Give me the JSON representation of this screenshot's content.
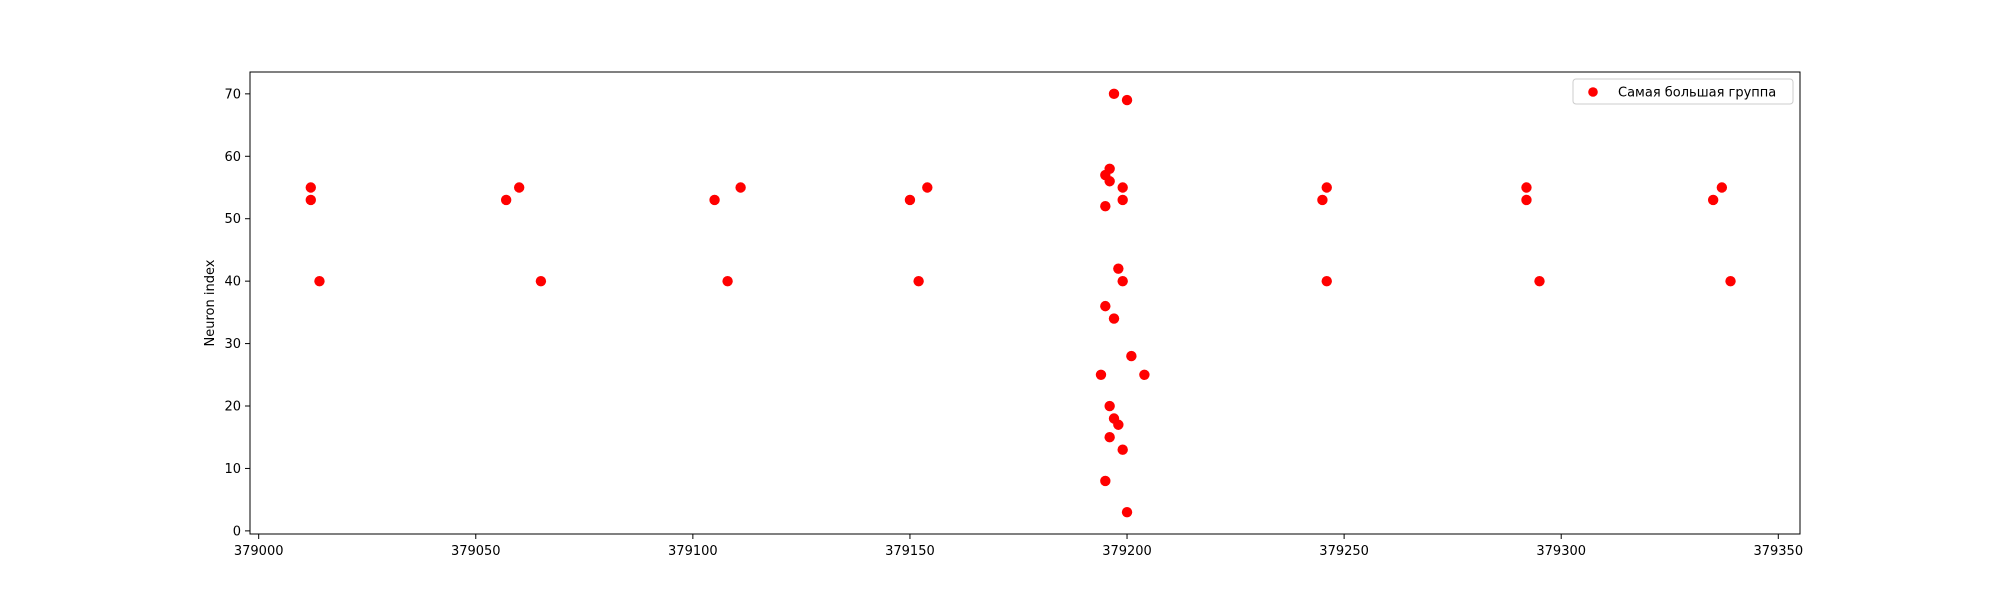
{
  "chart_data": {
    "type": "scatter",
    "title": "",
    "xlabel": "",
    "ylabel": "Neuron index",
    "xlim": [
      378998,
      379355
    ],
    "ylim": [
      -0.5,
      73.5
    ],
    "xticks": [
      379000,
      379050,
      379100,
      379150,
      379200,
      379250,
      379300,
      379350
    ],
    "yticks": [
      0,
      10,
      20,
      30,
      40,
      50,
      60,
      70
    ],
    "grid": false,
    "legend_position": "top-right",
    "series": [
      {
        "name": "Самая большая группа",
        "color": "#ff0000",
        "points": [
          {
            "x": 379012,
            "y": 55
          },
          {
            "x": 379012,
            "y": 53
          },
          {
            "x": 379014,
            "y": 40
          },
          {
            "x": 379057,
            "y": 53
          },
          {
            "x": 379060,
            "y": 55
          },
          {
            "x": 379065,
            "y": 40
          },
          {
            "x": 379105,
            "y": 53
          },
          {
            "x": 379108,
            "y": 40
          },
          {
            "x": 379111,
            "y": 55
          },
          {
            "x": 379150,
            "y": 53
          },
          {
            "x": 379152,
            "y": 40
          },
          {
            "x": 379154,
            "y": 55
          },
          {
            "x": 379194,
            "y": 25
          },
          {
            "x": 379195,
            "y": 57
          },
          {
            "x": 379195,
            "y": 52
          },
          {
            "x": 379195,
            "y": 36
          },
          {
            "x": 379195,
            "y": 8
          },
          {
            "x": 379196,
            "y": 58
          },
          {
            "x": 379196,
            "y": 56
          },
          {
            "x": 379196,
            "y": 20
          },
          {
            "x": 379196,
            "y": 15
          },
          {
            "x": 379197,
            "y": 70
          },
          {
            "x": 379197,
            "y": 34
          },
          {
            "x": 379197,
            "y": 18
          },
          {
            "x": 379198,
            "y": 42
          },
          {
            "x": 379198,
            "y": 17
          },
          {
            "x": 379199,
            "y": 55
          },
          {
            "x": 379199,
            "y": 53
          },
          {
            "x": 379199,
            "y": 40
          },
          {
            "x": 379199,
            "y": 13
          },
          {
            "x": 379200,
            "y": 69
          },
          {
            "x": 379200,
            "y": 3
          },
          {
            "x": 379201,
            "y": 28
          },
          {
            "x": 379204,
            "y": 25
          },
          {
            "x": 379245,
            "y": 53
          },
          {
            "x": 379246,
            "y": 55
          },
          {
            "x": 379246,
            "y": 40
          },
          {
            "x": 379292,
            "y": 55
          },
          {
            "x": 379292,
            "y": 53
          },
          {
            "x": 379295,
            "y": 40
          },
          {
            "x": 379335,
            "y": 53
          },
          {
            "x": 379337,
            "y": 55
          },
          {
            "x": 379339,
            "y": 40
          }
        ]
      }
    ]
  }
}
